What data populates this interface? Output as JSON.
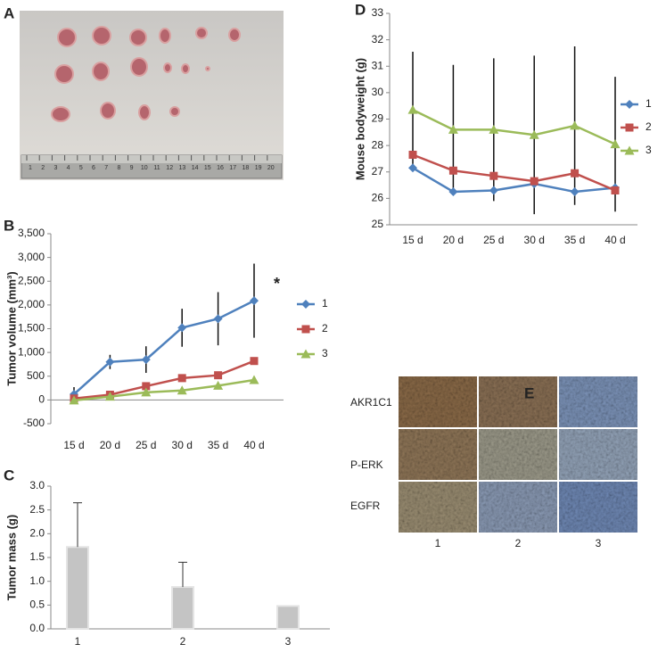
{
  "panels": {
    "labels": [
      "A",
      "B",
      "C",
      "D",
      "E"
    ],
    "ruler": [
      1,
      2,
      3,
      4,
      5,
      6,
      7,
      8,
      9,
      10,
      11,
      12,
      13,
      14,
      15,
      16,
      17,
      18,
      19,
      20
    ],
    "ihc": {
      "rows": [
        "AKR1C1",
        "P-ERK",
        "EGFR"
      ],
      "columns": [
        "1",
        "2",
        "3"
      ]
    }
  },
  "chart_data": [
    {
      "type": "line",
      "y_label": "Tumor volume (mm³)",
      "annotation": "*",
      "categories": [
        "15 d",
        "20 d",
        "25 d",
        "30 d",
        "35 d",
        "40 d"
      ],
      "series": [
        {
          "name": "1",
          "color": "#4f81bd",
          "marker": "diamond",
          "values": [
            120,
            800,
            850,
            1520,
            1710,
            2090
          ],
          "errors": [
            150,
            150,
            280,
            400,
            560,
            780
          ]
        },
        {
          "name": "2",
          "color": "#c0504d",
          "marker": "square",
          "values": [
            30,
            110,
            290,
            460,
            520,
            820
          ]
        },
        {
          "name": "3",
          "color": "#9bbb59",
          "marker": "triangle",
          "values": [
            -10,
            70,
            160,
            200,
            300,
            420
          ]
        }
      ],
      "ylim": [
        -500,
        3500
      ],
      "yticks": [
        -500,
        0,
        500,
        {
          "value": 1000,
          "label": "1,000"
        },
        {
          "value": 1500,
          "label": "1,500"
        },
        {
          "value": 2000,
          "label": "2,000"
        },
        {
          "value": 2500,
          "label": "2,500"
        },
        {
          "value": 3000,
          "label": "3,000"
        },
        {
          "value": 3500,
          "label": "3,500"
        }
      ],
      "legend": "right",
      "grid": false
    },
    {
      "type": "bar",
      "y_label": "Tumor mass (g)",
      "categories": [
        "1",
        "2",
        "3"
      ],
      "values": [
        1.72,
        0.88,
        0.48
      ],
      "errors": [
        0.93,
        0.52,
        null
      ],
      "color": "#c4c4c4",
      "ylim": [
        0,
        3
      ],
      "yticks": [
        {
          "value": 0,
          "label": "0.0"
        },
        0.5,
        {
          "value": 1,
          "label": "1.0"
        },
        1.5,
        {
          "value": 2,
          "label": "2.0"
        },
        2.5,
        {
          "value": 3,
          "label": "3.0"
        }
      ],
      "grid": false
    },
    {
      "type": "line",
      "y_label": "Mouse bodyweight (g)",
      "categories": [
        "15 d",
        "20 d",
        "25 d",
        "30 d",
        "35 d",
        "40 d"
      ],
      "series": [
        {
          "name": "1",
          "color": "#4f81bd",
          "marker": "diamond",
          "values": [
            27.15,
            26.25,
            26.3,
            26.55,
            26.25,
            26.4
          ]
        },
        {
          "name": "2",
          "color": "#c0504d",
          "marker": "square",
          "values": [
            27.65,
            27.05,
            26.85,
            26.65,
            26.95,
            26.3
          ]
        },
        {
          "name": "3",
          "color": "#9bbb59",
          "marker": "triangle",
          "values": [
            29.35,
            28.6,
            28.6,
            28.4,
            28.75,
            28.05
          ],
          "errors": [
            2.2,
            2.45,
            2.7,
            3.0,
            3.0,
            2.55
          ]
        }
      ],
      "ylim": [
        25,
        33
      ],
      "yticks": [
        25,
        26,
        27,
        28,
        29,
        30,
        31,
        32,
        33
      ],
      "legend": "right",
      "grid": false
    }
  ]
}
